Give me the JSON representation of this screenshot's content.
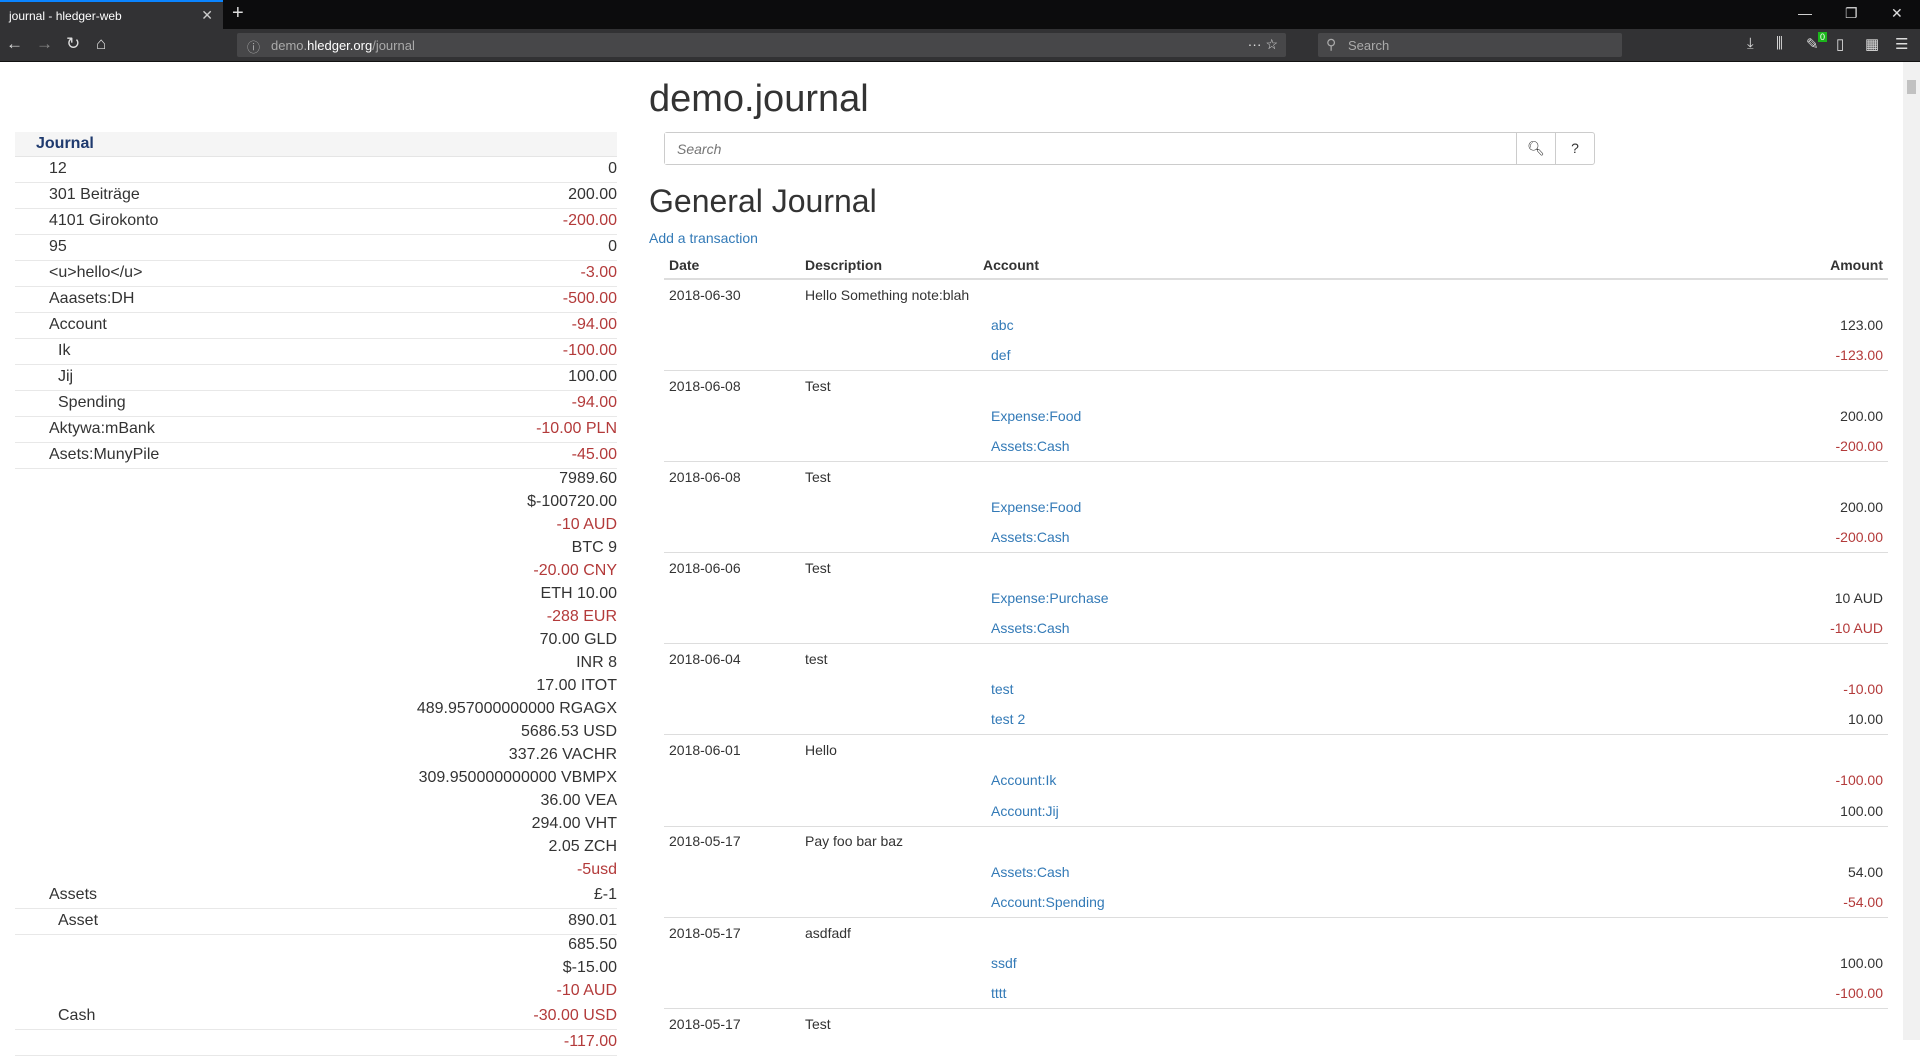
{
  "browser": {
    "tab_title": "journal - hledger-web",
    "url_domain": "demo.",
    "url_host": "hledger.org",
    "url_path": "/journal",
    "search_placeholder": "Search",
    "badge": "0"
  },
  "sidebar": {
    "header": "Journal",
    "rows": [
      {
        "name": "12",
        "amounts": [
          "0"
        ],
        "indent": 0
      },
      {
        "name": "301 Beiträge",
        "amounts": [
          "200.00"
        ],
        "indent": 0
      },
      {
        "name": "4101 Girokonto",
        "amounts": [
          "-200.00"
        ],
        "indent": 0
      },
      {
        "name": "95",
        "amounts": [
          "0"
        ],
        "indent": 0
      },
      {
        "name": "<u>hello</u>",
        "amounts": [
          "-3.00"
        ],
        "indent": 0
      },
      {
        "name": "Aaasets:DH",
        "amounts": [
          "-500.00"
        ],
        "indent": 0
      },
      {
        "name": "Account",
        "amounts": [
          "-94.00"
        ],
        "indent": 0
      },
      {
        "name": "Ik",
        "amounts": [
          "-100.00"
        ],
        "indent": 1
      },
      {
        "name": "Jij",
        "amounts": [
          "100.00"
        ],
        "indent": 1
      },
      {
        "name": "Spending",
        "amounts": [
          "-94.00"
        ],
        "indent": 1
      },
      {
        "name": "Aktywa:mBank",
        "amounts": [
          "-10.00 PLN"
        ],
        "indent": 0
      },
      {
        "name": "Asets:MunyPile",
        "amounts": [
          "-45.00"
        ],
        "indent": 0
      },
      {
        "name": "Assets",
        "amounts": [
          "7989.60",
          "$-100720.00",
          "-10 AUD",
          "BTC 9",
          "-20.00 CNY",
          "ETH 10.00",
          "-288 EUR",
          "70.00 GLD",
          "INR 8",
          "17.00 ITOT",
          "489.957000000000 RGAGX",
          "5686.53 USD",
          "337.26 VACHR",
          "309.950000000000 VBMPX",
          "36.00 VEA",
          "294.00 VHT",
          "2.05 ZCH",
          "-5usd",
          "£-1"
        ],
        "indent": 0
      },
      {
        "name": "Asset",
        "amounts": [
          "890.01"
        ],
        "indent": 1
      },
      {
        "name": "Cash",
        "amounts": [
          "685.50",
          "$-15.00",
          "-10 AUD",
          "-30.00 USD"
        ],
        "indent": 1
      },
      {
        "name": "",
        "amounts": [
          "-117.00"
        ],
        "indent": 1
      }
    ]
  },
  "main": {
    "title": "demo.journal",
    "search_placeholder": "Search",
    "help_label": "?",
    "heading": "General Journal",
    "add_link": "Add a transaction",
    "columns": [
      "Date",
      "Description",
      "Account",
      "Amount"
    ],
    "transactions": [
      {
        "date": "2018-06-30",
        "description": "Hello Something note:blah",
        "postings": [
          {
            "account": "abc",
            "amount": "123.00"
          },
          {
            "account": "def",
            "amount": "-123.00"
          }
        ]
      },
      {
        "date": "2018-06-08",
        "description": "Test",
        "postings": [
          {
            "account": "Expense:Food",
            "amount": "200.00"
          },
          {
            "account": "Assets:Cash",
            "amount": "-200.00"
          }
        ]
      },
      {
        "date": "2018-06-08",
        "description": "Test",
        "postings": [
          {
            "account": "Expense:Food",
            "amount": "200.00"
          },
          {
            "account": "Assets:Cash",
            "amount": "-200.00"
          }
        ]
      },
      {
        "date": "2018-06-06",
        "description": "Test",
        "postings": [
          {
            "account": "Expense:Purchase",
            "amount": "10 AUD"
          },
          {
            "account": "Assets:Cash",
            "amount": "-10 AUD"
          }
        ]
      },
      {
        "date": "2018-06-04",
        "description": "test",
        "postings": [
          {
            "account": "test",
            "amount": "-10.00"
          },
          {
            "account": "test 2",
            "amount": "10.00"
          }
        ]
      },
      {
        "date": "2018-06-01",
        "description": "Hello",
        "postings": [
          {
            "account": "Account:Ik",
            "amount": "-100.00"
          },
          {
            "account": "Account:Jij",
            "amount": "100.00"
          }
        ]
      },
      {
        "date": "2018-05-17",
        "description": "Pay foo bar baz",
        "postings": [
          {
            "account": "Assets:Cash",
            "amount": "54.00"
          },
          {
            "account": "Account:Spending",
            "amount": "-54.00"
          }
        ]
      },
      {
        "date": "2018-05-17",
        "description": "asdfadf",
        "postings": [
          {
            "account": "ssdf",
            "amount": "100.00"
          },
          {
            "account": "tttt",
            "amount": "-100.00"
          }
        ]
      },
      {
        "date": "2018-05-17",
        "description": "Test",
        "postings": []
      }
    ]
  },
  "colors": {
    "negative": "#b33a3a",
    "link": "#337ab7",
    "header": "#1f3a6e"
  }
}
